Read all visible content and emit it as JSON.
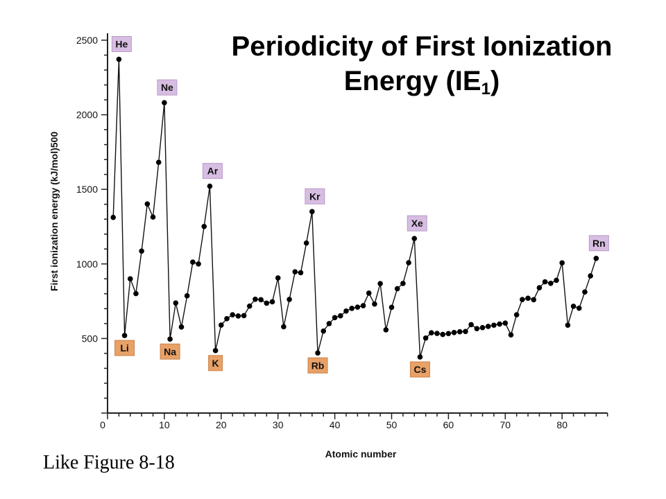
{
  "title": {
    "main": "Periodicity of First Ionization Energy (IE",
    "subscript": "1",
    "close": ")"
  },
  "caption": "Like Figure 8-18",
  "chart_data": {
    "type": "line",
    "title": "Periodicity of First Ionization Energy (IE1)",
    "xlabel": "Atomic number",
    "ylabel": "First ionization energy (kJ/mol)500",
    "xlim": [
      0,
      88
    ],
    "ylim": [
      0,
      2500
    ],
    "x_ticks": [
      0,
      10,
      20,
      30,
      40,
      50,
      60,
      70,
      80
    ],
    "y_ticks": [
      500,
      1000,
      1500,
      2000,
      2500
    ],
    "grid": false,
    "series": [
      {
        "x": [
          1,
          2,
          3,
          4,
          5,
          6,
          7,
          8,
          9,
          10,
          11,
          12,
          13,
          14,
          15,
          16,
          17,
          18,
          19,
          20,
          21,
          22,
          23,
          24,
          25,
          26,
          27,
          28,
          29,
          30,
          31,
          32,
          33,
          34,
          35,
          36,
          37,
          38,
          39,
          40,
          41,
          42,
          43,
          44,
          45,
          46,
          47,
          48,
          49,
          50,
          51,
          52,
          53,
          54,
          55,
          56,
          57,
          58,
          59,
          60,
          61,
          62,
          63,
          64,
          65,
          66,
          67,
          68,
          69,
          70,
          71,
          72,
          73,
          74,
          75,
          76,
          77,
          78,
          79,
          80,
          81,
          82,
          83,
          84,
          85,
          86
        ],
        "values": [
          1312,
          2372,
          520,
          900,
          801,
          1086,
          1402,
          1314,
          1681,
          2081,
          496,
          738,
          577,
          786,
          1012,
          1000,
          1251,
          1521,
          419,
          590,
          633,
          659,
          651,
          653,
          717,
          763,
          760,
          737,
          746,
          906,
          579,
          762,
          947,
          941,
          1140,
          1351,
          403,
          550,
          600,
          640,
          652,
          684,
          702,
          710,
          720,
          804,
          731,
          868,
          558,
          709,
          834,
          869,
          1008,
          1170,
          376,
          503,
          538,
          534,
          527,
          533,
          540,
          545,
          547,
          593,
          566,
          573,
          581,
          589,
          597,
          603,
          524,
          659,
          761,
          770,
          760,
          840,
          880,
          870,
          890,
          1007,
          589,
          716,
          703,
          812,
          920,
          1037
        ]
      }
    ],
    "annotations": [
      {
        "text": "He",
        "x": 2,
        "y": 2372,
        "color": "#d8bde2",
        "side": "above"
      },
      {
        "text": "Ne",
        "x": 10,
        "y": 2081,
        "color": "#d8bde2",
        "side": "above"
      },
      {
        "text": "Ar",
        "x": 18,
        "y": 1521,
        "color": "#d8bde2",
        "side": "above"
      },
      {
        "text": "Kr",
        "x": 36,
        "y": 1351,
        "color": "#d8bde2",
        "side": "above"
      },
      {
        "text": "Xe",
        "x": 54,
        "y": 1170,
        "color": "#d8bde2",
        "side": "above"
      },
      {
        "text": "Rn",
        "x": 86,
        "y": 1037,
        "color": "#d8bde2",
        "side": "above"
      },
      {
        "text": "Li",
        "x": 3,
        "y": 520,
        "color": "#e8a167",
        "side": "below"
      },
      {
        "text": "Na",
        "x": 11,
        "y": 496,
        "color": "#e8a167",
        "side": "below"
      },
      {
        "text": "K",
        "x": 19,
        "y": 419,
        "color": "#e8a167",
        "side": "below"
      },
      {
        "text": "Rb",
        "x": 37,
        "y": 403,
        "color": "#e8a167",
        "side": "below"
      },
      {
        "text": "Cs",
        "x": 55,
        "y": 376,
        "color": "#e8a167",
        "side": "below"
      }
    ]
  }
}
